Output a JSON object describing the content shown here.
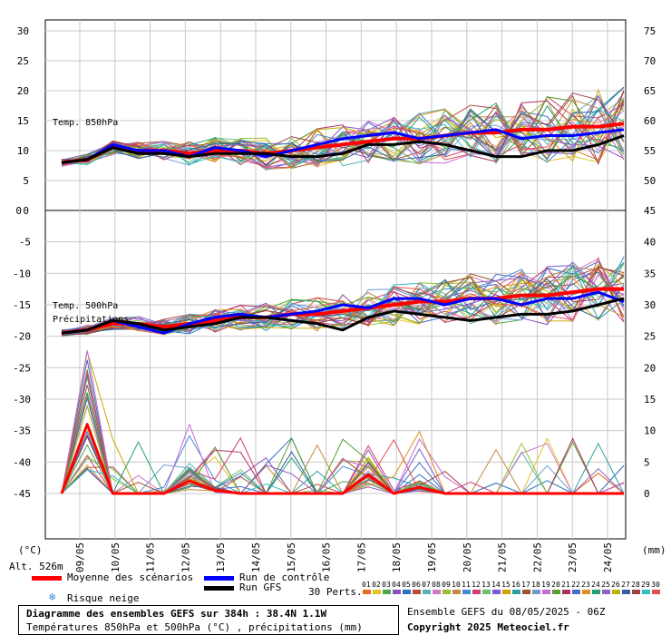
{
  "chart_data": {
    "type": "line",
    "title": "Diagramme des ensembles GEFS sur 384h : 38.4N 1.1W",
    "subtitle": "Températures 850hPa et 500hPa (°C) , précipitations (mm)",
    "x_ticks": [
      "09/05",
      "10/05",
      "11/05",
      "12/05",
      "13/05",
      "14/05",
      "15/05",
      "16/05",
      "17/05",
      "18/05",
      "19/05",
      "20/05",
      "21/05",
      "22/05",
      "23/05",
      "24/05"
    ],
    "upper_panel": {
      "label": "Temp. 850hPa",
      "left_ticks": [
        "30",
        "25",
        "20",
        "15",
        "10",
        "5",
        "0"
      ],
      "right_ticks": [
        "75",
        "70",
        "65",
        "60",
        "55",
        "50"
      ],
      "ylim": [
        0,
        30
      ],
      "series": [
        {
          "name": "Moyenne des scénarios",
          "color": "#ff0000",
          "values": [
            8,
            8.5,
            10.5,
            10,
            10,
            9.5,
            10,
            10,
            9.5,
            10,
            10.5,
            11,
            11.5,
            12,
            12,
            12.5,
            13,
            13,
            13.5,
            13.5,
            14,
            14,
            14.5
          ]
        },
        {
          "name": "Run de contrôle",
          "color": "#0000ff",
          "values": [
            8,
            8.5,
            11,
            10,
            10,
            9,
            10.5,
            10,
            9,
            10,
            11,
            12,
            12.5,
            13,
            12,
            12.5,
            13,
            13.5,
            12,
            12.5,
            12.5,
            13,
            13.5
          ]
        },
        {
          "name": "Run GFS",
          "color": "#000000",
          "values": [
            8,
            8.5,
            10.5,
            9.5,
            9.5,
            9,
            9.5,
            9.5,
            9.5,
            9,
            9,
            9.5,
            11,
            11,
            11.5,
            11,
            10,
            9,
            9,
            10,
            10,
            11,
            12.5
          ]
        }
      ]
    },
    "lower_panel": {
      "label_temp": "Temp. 500hPa",
      "label_precip": "Précipitations",
      "left_ticks": [
        "-5",
        "-10",
        "-15",
        "-20",
        "-25",
        "-30",
        "-35",
        "-40",
        "-45"
      ],
      "right_ticks": [
        "45",
        "40",
        "35",
        "30",
        "25",
        "20",
        "15",
        "10",
        "5",
        "0"
      ],
      "temp_ylim": [
        -45,
        0
      ],
      "precip_ylim": [
        0,
        45
      ],
      "temp_series": [
        {
          "name": "Moyenne des scénarios",
          "color": "#ff0000",
          "values": [
            -19.5,
            -19,
            -18,
            -18,
            -18.5,
            -18,
            -17.5,
            -17,
            -17,
            -16.5,
            -16.5,
            -16,
            -15.5,
            -15,
            -14.5,
            -14.5,
            -14,
            -14,
            -13.5,
            -13.5,
            -13,
            -12.5,
            -12.5
          ]
        },
        {
          "name": "Run de contrôle",
          "color": "#0000ff",
          "values": [
            -19.5,
            -19,
            -17.5,
            -18.5,
            -19.5,
            -18,
            -17,
            -16.5,
            -17,
            -16.5,
            -16,
            -15,
            -15.5,
            -14,
            -14,
            -15,
            -14,
            -14,
            -15,
            -14,
            -14,
            -13,
            -14.5
          ]
        },
        {
          "name": "Run GFS",
          "color": "#000000",
          "values": [
            -19.5,
            -19,
            -17.5,
            -18,
            -19,
            -18.5,
            -18,
            -17,
            -17,
            -17.5,
            -18,
            -19,
            -17,
            -16,
            -16.5,
            -17,
            -17.5,
            -17,
            -16.5,
            -16.5,
            -16,
            -15,
            -14
          ]
        }
      ],
      "precip_mean": {
        "name": "Moyenne des scénarios",
        "color": "#ff0000",
        "values": [
          0,
          11,
          0,
          0,
          0,
          2,
          0.5,
          0,
          0,
          0,
          0,
          0,
          3,
          0,
          1,
          0,
          0,
          0,
          0,
          0,
          0,
          0,
          0
        ]
      }
    }
  },
  "axis_units": {
    "left": "(°C)",
    "right": "(mm)"
  },
  "altitude": "Alt. 526m",
  "legend": {
    "mean": "Moyenne des scénarios",
    "control": "Run de contrôle",
    "gfs": "Run GFS",
    "snow": "Risque neige",
    "perts_label": "30 Perts."
  },
  "footer": {
    "title": "Diagramme des ensembles GEFS sur 384h : 38.4N 1.1W",
    "subtitle": "Températures 850hPa et 500hPa (°C) , précipitations (mm)",
    "run_info": "Ensemble GEFS du 08/05/2025 - 06Z",
    "copyright": "Copyright 2025 Meteociel.fr"
  },
  "perturbations": [
    "01",
    "02",
    "03",
    "04",
    "05",
    "06",
    "07",
    "08",
    "09",
    "10",
    "11",
    "12",
    "13",
    "14",
    "15",
    "16",
    "17",
    "18",
    "19",
    "20",
    "21",
    "22",
    "23",
    "24",
    "25",
    "26",
    "27",
    "28",
    "29",
    "30"
  ],
  "pert_colors": [
    "#e2701c",
    "#e6c229",
    "#4fa84c",
    "#8a52c0",
    "#2c6fbe",
    "#b94a3a",
    "#58b6b0",
    "#d678c8",
    "#9bbf30",
    "#c48a3f",
    "#3f8cd6",
    "#d23c70",
    "#6ec06e",
    "#7a5ad6",
    "#cfa400",
    "#2aa0a0",
    "#a0522d",
    "#6d9bd1",
    "#c86ad8",
    "#5b9e2f",
    "#b03060",
    "#4b6cc8",
    "#e09020",
    "#20a070",
    "#9060c0",
    "#c0b000",
    "#3060a0",
    "#a04040",
    "#30c0c0",
    "#e05050"
  ]
}
